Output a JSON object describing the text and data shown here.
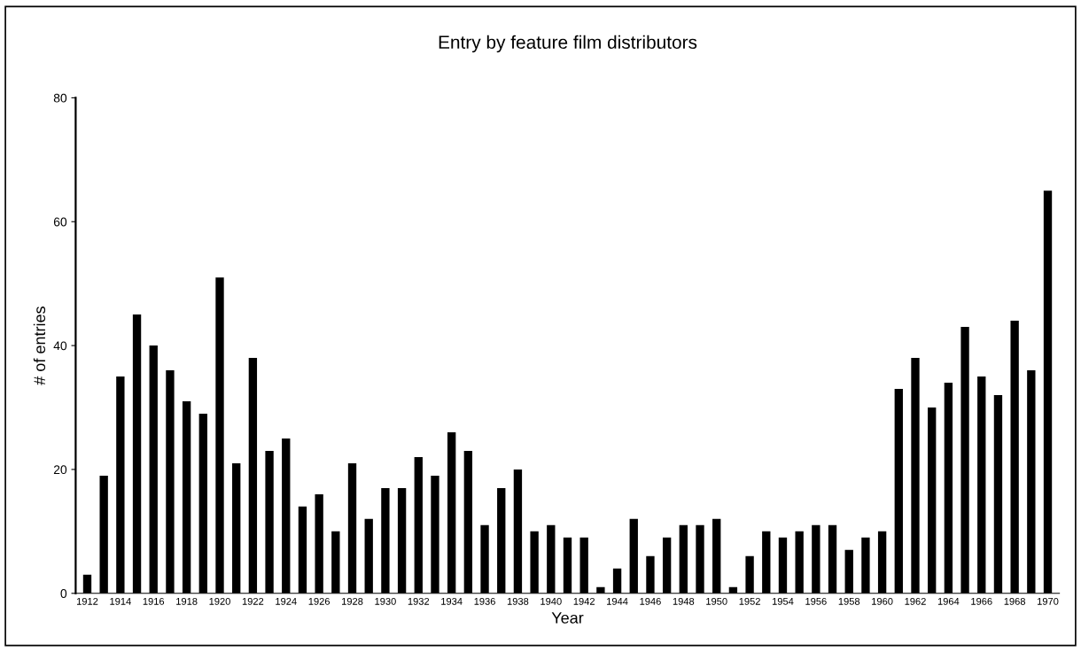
{
  "chart_data": {
    "type": "bar",
    "title": "Entry by feature film distributors",
    "xlabel": "Year",
    "ylabel": "# of entries",
    "categories": [
      "1912",
      null,
      "1914",
      null,
      "1916",
      null,
      "1918",
      null,
      "1920",
      null,
      "1922",
      null,
      "1924",
      null,
      "1926",
      null,
      "1928",
      null,
      "1930",
      null,
      "1932",
      null,
      "1934",
      null,
      "1936",
      null,
      "1938",
      null,
      "1940",
      null,
      "1942",
      null,
      "1944",
      null,
      "1946",
      null,
      "1948",
      null,
      "1950",
      null,
      "1952",
      null,
      "1954",
      null,
      "1956",
      null,
      "1958",
      null,
      "1960",
      null,
      "1962",
      null,
      "1964",
      null,
      "1966",
      null,
      "1968",
      null,
      "1970"
    ],
    "values": [
      3,
      19,
      35,
      45,
      40,
      36,
      31,
      29,
      51,
      21,
      38,
      23,
      25,
      14,
      16,
      10,
      21,
      12,
      17,
      17,
      22,
      19,
      26,
      23,
      11,
      17,
      20,
      10,
      11,
      9,
      9,
      1,
      4,
      12,
      6,
      9,
      11,
      11,
      12,
      1,
      6,
      10,
      9,
      10,
      11,
      11,
      7,
      9,
      10,
      33,
      38,
      30,
      34,
      43,
      35,
      32,
      44,
      36,
      65
    ],
    "color": "#000000",
    "ylim": [
      0,
      80
    ],
    "yticks": [
      0,
      20,
      40,
      60,
      80
    ],
    "grid": false,
    "legend": false
  }
}
